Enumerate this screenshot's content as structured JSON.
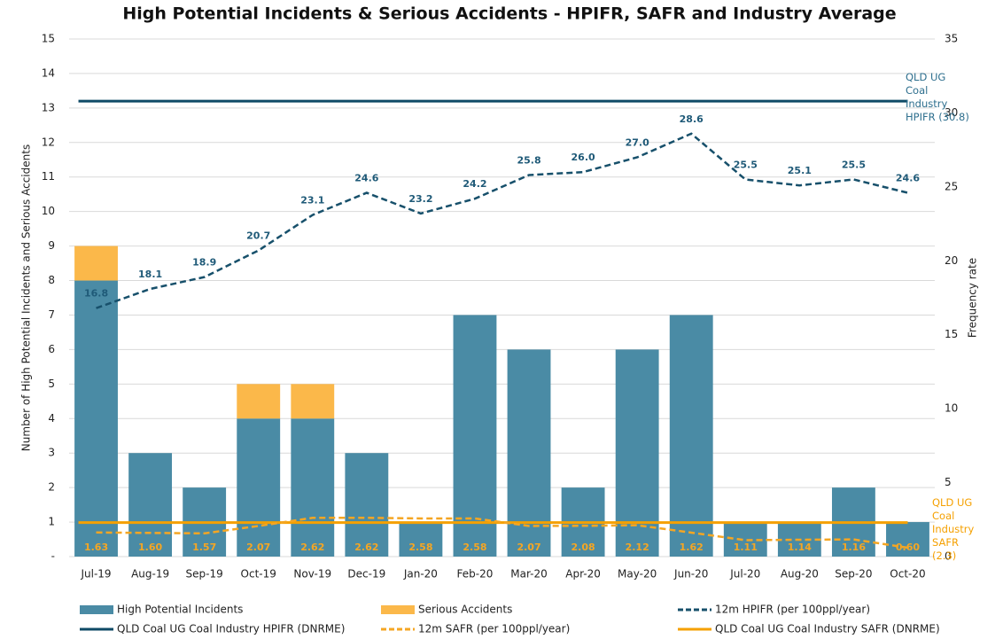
{
  "chart_data": {
    "type": "bar",
    "title": "High Potential Incidents & Serious Accidents - HPIFR, SAFR and Industry Average",
    "y_label": "Number of High Potential Incidents and Serious Accidents",
    "y2_label": "Frequency rate",
    "categories": [
      "Jul-19",
      "Aug-19",
      "Sep-19",
      "Oct-19",
      "Nov-19",
      "Dec-19",
      "Jan-20",
      "Feb-20",
      "Mar-20",
      "Apr-20",
      "May-20",
      "Jun-20",
      "Jul-20",
      "Aug-20",
      "Sep-20",
      "Oct-20"
    ],
    "ylim": [
      0,
      15
    ],
    "yticks": [
      {
        "value": 0,
        "label": "-"
      },
      1,
      2,
      3,
      4,
      5,
      6,
      7,
      8,
      9,
      10,
      11,
      12,
      13,
      14,
      15
    ],
    "y2lim": [
      0,
      35
    ],
    "y2ticks": [
      0,
      5,
      10,
      15,
      20,
      25,
      30,
      35
    ],
    "grid": true,
    "series": [
      {
        "name": "High Potential Incidents",
        "type": "bar",
        "color": "#4a8ba5",
        "values": [
          8,
          3,
          2,
          4,
          4,
          3,
          1,
          7,
          6,
          2,
          6,
          7,
          1,
          1,
          2,
          1
        ]
      },
      {
        "name": "Serious Accidents",
        "type": "bar",
        "color": "#fbb84a",
        "values": [
          1,
          0,
          0,
          1,
          1,
          0,
          0,
          0,
          0,
          0,
          0,
          0,
          0,
          0,
          0,
          0
        ]
      },
      {
        "name": "12m HPIFR (per 100ppl/year)",
        "type": "line",
        "axis": "y2",
        "line_style": "dashed",
        "color": "#17506b",
        "values": [
          16.8,
          18.1,
          18.9,
          20.7,
          23.1,
          24.6,
          23.2,
          24.2,
          25.8,
          26.0,
          27.0,
          28.6,
          25.5,
          25.1,
          25.5,
          24.6
        ],
        "value_labels": [
          "16.8",
          "18.1",
          "18.9",
          "20.7",
          "23.1",
          "24.6",
          "23.2",
          "24.2",
          "25.8",
          "26.0",
          "27.0",
          "28.6",
          "25.5",
          "25.1",
          "25.5",
          "24.6"
        ]
      },
      {
        "name": "12m SAFR (per 100ppl/year)",
        "type": "line",
        "axis": "y2",
        "line_style": "dashed",
        "color": "#f5a623",
        "values": [
          1.63,
          1.6,
          1.57,
          2.07,
          2.62,
          2.62,
          2.58,
          2.58,
          2.07,
          2.08,
          2.12,
          1.62,
          1.11,
          1.14,
          1.16,
          0.6
        ],
        "value_labels": [
          "1.63",
          "1.60",
          "1.57",
          "2.07",
          "2.62",
          "2.62",
          "2.58",
          "2.58",
          "2.07",
          "2.08",
          "2.12",
          "1.62",
          "1.11",
          "1.14",
          "1.16",
          "0.60"
        ]
      }
    ],
    "reference_lines": [
      {
        "name": "QLD Coal UG Coal Industry HPIFR (DNRME)",
        "axis": "y2",
        "color": "#0e4a66",
        "value": 30.8,
        "label": "QLD UG Coal Industry HPIFR (30.8)"
      },
      {
        "name": "QLD Coal UG Coal Industry SAFR (DNRME)",
        "axis": "y2",
        "color": "#f5a000",
        "value": 2.3,
        "label": "QLD UG Coal Industry SAFR (2.3)"
      }
    ]
  }
}
